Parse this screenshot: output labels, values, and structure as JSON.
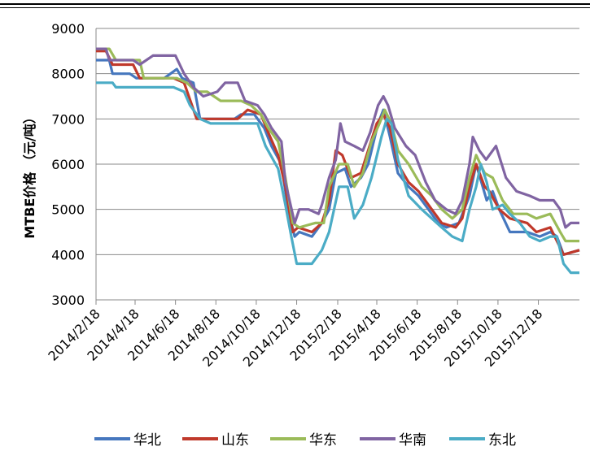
{
  "chart_data": {
    "type": "line",
    "title": "",
    "xlabel": "",
    "ylabel": "MTBE价格 （元/吨）",
    "ylim": [
      3000,
      9000
    ],
    "yticks": [
      3000,
      4000,
      5000,
      6000,
      7000,
      8000,
      9000
    ],
    "xlim": [
      "2014-02-18",
      "2016-02-18"
    ],
    "xticks": [
      "2014-02-18",
      "2014-04-18",
      "2014-06-18",
      "2014-08-18",
      "2014-10-18",
      "2014-12-18",
      "2015-02-18",
      "2015-04-18",
      "2015-06-18",
      "2015-08-18",
      "2015-10-18",
      "2015-12-18"
    ],
    "xtick_labels": [
      "2014/2/18",
      "2014/4/18",
      "2014/6/18",
      "2014/8/18",
      "2014/10/18",
      "2014/12/18",
      "2015/2/18",
      "2015/4/18",
      "2015/6/18",
      "2015/8/18",
      "2015/10/18",
      "2015/12/18"
    ],
    "grid": "horizontal",
    "legend": "bottom",
    "series": [
      {
        "name": "华北",
        "color": "#4677BE",
        "points": [
          [
            "2014-02-18",
            8300
          ],
          [
            "2014-03-10",
            8300
          ],
          [
            "2014-03-15",
            8000
          ],
          [
            "2014-04-10",
            8000
          ],
          [
            "2014-04-20",
            7900
          ],
          [
            "2014-06-01",
            7900
          ],
          [
            "2014-06-20",
            8100
          ],
          [
            "2014-06-28",
            7900
          ],
          [
            "2014-07-15",
            7800
          ],
          [
            "2014-07-25",
            7000
          ],
          [
            "2014-09-15",
            7000
          ],
          [
            "2014-09-25",
            7100
          ],
          [
            "2014-10-15",
            7100
          ],
          [
            "2014-10-30",
            6800
          ],
          [
            "2014-11-10",
            6400
          ],
          [
            "2014-11-25",
            6000
          ],
          [
            "2014-12-05",
            5000
          ],
          [
            "2014-12-15",
            4400
          ],
          [
            "2014-12-22",
            4500
          ],
          [
            "2015-01-10",
            4400
          ],
          [
            "2015-01-25",
            4700
          ],
          [
            "2015-02-05",
            5000
          ],
          [
            "2015-02-15",
            5800
          ],
          [
            "2015-03-01",
            5900
          ],
          [
            "2015-03-10",
            5500
          ],
          [
            "2015-03-25",
            5700
          ],
          [
            "2015-04-05",
            6000
          ],
          [
            "2015-04-20",
            6900
          ],
          [
            "2015-04-28",
            7200
          ],
          [
            "2015-05-08",
            6600
          ],
          [
            "2015-05-20",
            5800
          ],
          [
            "2015-06-05",
            5500
          ],
          [
            "2015-06-20",
            5300
          ],
          [
            "2015-07-05",
            5000
          ],
          [
            "2015-07-20",
            4700
          ],
          [
            "2015-08-01",
            4600
          ],
          [
            "2015-08-20",
            4700
          ],
          [
            "2015-09-05",
            5300
          ],
          [
            "2015-09-15",
            6000
          ],
          [
            "2015-09-25",
            5500
          ],
          [
            "2015-10-01",
            5200
          ],
          [
            "2015-10-10",
            5400
          ],
          [
            "2015-10-20",
            5000
          ],
          [
            "2015-11-05",
            4500
          ],
          [
            "2015-12-01",
            4500
          ],
          [
            "2015-12-20",
            4400
          ],
          [
            "2016-01-05",
            4500
          ],
          [
            "2016-01-15",
            4400
          ],
          [
            "2016-01-25",
            4000
          ],
          [
            "2016-02-18",
            4100
          ]
        ]
      },
      {
        "name": "山东",
        "color": "#C0392B",
        "points": [
          [
            "2014-02-18",
            8500
          ],
          [
            "2014-03-05",
            8500
          ],
          [
            "2014-03-15",
            8200
          ],
          [
            "2014-04-15",
            8200
          ],
          [
            "2014-04-25",
            7900
          ],
          [
            "2014-06-15",
            7900
          ],
          [
            "2014-07-01",
            7800
          ],
          [
            "2014-07-20",
            7000
          ],
          [
            "2014-09-20",
            7000
          ],
          [
            "2014-10-05",
            7200
          ],
          [
            "2014-10-25",
            7100
          ],
          [
            "2014-11-05",
            6700
          ],
          [
            "2014-11-20",
            6200
          ],
          [
            "2014-12-01",
            5500
          ],
          [
            "2014-12-12",
            4500
          ],
          [
            "2014-12-20",
            4600
          ],
          [
            "2015-01-10",
            4500
          ],
          [
            "2015-01-25",
            4700
          ],
          [
            "2015-02-05",
            5200
          ],
          [
            "2015-02-15",
            6300
          ],
          [
            "2015-02-25",
            6200
          ],
          [
            "2015-03-10",
            5700
          ],
          [
            "2015-03-25",
            5800
          ],
          [
            "2015-04-05",
            6300
          ],
          [
            "2015-04-18",
            6900
          ],
          [
            "2015-04-28",
            7100
          ],
          [
            "2015-05-08",
            6800
          ],
          [
            "2015-05-20",
            6000
          ],
          [
            "2015-06-05",
            5600
          ],
          [
            "2015-06-20",
            5400
          ],
          [
            "2015-07-05",
            5100
          ],
          [
            "2015-07-25",
            4700
          ],
          [
            "2015-08-15",
            4600
          ],
          [
            "2015-08-25",
            4800
          ],
          [
            "2015-09-05",
            5500
          ],
          [
            "2015-09-15",
            6000
          ],
          [
            "2015-09-28",
            5500
          ],
          [
            "2015-10-05",
            5400
          ],
          [
            "2015-10-20",
            5000
          ],
          [
            "2015-11-05",
            4800
          ],
          [
            "2015-12-01",
            4700
          ],
          [
            "2015-12-15",
            4500
          ],
          [
            "2016-01-05",
            4600
          ],
          [
            "2016-01-25",
            4000
          ],
          [
            "2016-02-18",
            4100
          ]
        ]
      },
      {
        "name": "华东",
        "color": "#9BBB59",
        "points": [
          [
            "2014-02-18",
            8550
          ],
          [
            "2014-03-10",
            8550
          ],
          [
            "2014-03-20",
            8300
          ],
          [
            "2014-04-25",
            8300
          ],
          [
            "2014-05-01",
            7900
          ],
          [
            "2014-06-20",
            7900
          ],
          [
            "2014-07-05",
            7800
          ],
          [
            "2014-07-20",
            7600
          ],
          [
            "2014-08-05",
            7600
          ],
          [
            "2014-08-15",
            7500
          ],
          [
            "2014-08-25",
            7400
          ],
          [
            "2014-09-25",
            7400
          ],
          [
            "2014-10-10",
            7300
          ],
          [
            "2014-10-25",
            7100
          ],
          [
            "2014-11-05",
            6800
          ],
          [
            "2014-11-20",
            6500
          ],
          [
            "2014-12-01",
            5700
          ],
          [
            "2014-12-12",
            4700
          ],
          [
            "2014-12-22",
            4600
          ],
          [
            "2015-01-15",
            4700
          ],
          [
            "2015-01-28",
            4700
          ],
          [
            "2015-02-05",
            5500
          ],
          [
            "2015-02-20",
            6000
          ],
          [
            "2015-03-05",
            6000
          ],
          [
            "2015-03-15",
            5500
          ],
          [
            "2015-03-28",
            5800
          ],
          [
            "2015-04-10",
            6500
          ],
          [
            "2015-04-22",
            6900
          ],
          [
            "2015-04-30",
            7200
          ],
          [
            "2015-05-10",
            6900
          ],
          [
            "2015-05-20",
            6300
          ],
          [
            "2015-06-05",
            6000
          ],
          [
            "2015-06-25",
            5500
          ],
          [
            "2015-07-10",
            5300
          ],
          [
            "2015-07-25",
            5000
          ],
          [
            "2015-08-10",
            4800
          ],
          [
            "2015-08-25",
            5000
          ],
          [
            "2015-09-05",
            5700
          ],
          [
            "2015-09-15",
            6200
          ],
          [
            "2015-09-28",
            5800
          ],
          [
            "2015-10-10",
            5700
          ],
          [
            "2015-10-25",
            5200
          ],
          [
            "2015-11-10",
            4900
          ],
          [
            "2015-12-01",
            4900
          ],
          [
            "2015-12-15",
            4800
          ],
          [
            "2016-01-05",
            4900
          ],
          [
            "2016-01-20",
            4500
          ],
          [
            "2016-01-28",
            4300
          ],
          [
            "2016-02-18",
            4300
          ]
        ]
      },
      {
        "name": "华南",
        "color": "#8064A2",
        "points": [
          [
            "2014-02-18",
            8550
          ],
          [
            "2014-03-05",
            8550
          ],
          [
            "2014-03-10",
            8300
          ],
          [
            "2014-04-01",
            8300
          ],
          [
            "2014-04-15",
            8300
          ],
          [
            "2014-04-25",
            8200
          ],
          [
            "2014-05-15",
            8400
          ],
          [
            "2014-06-18",
            8400
          ],
          [
            "2014-07-01",
            8000
          ],
          [
            "2014-07-15",
            7700
          ],
          [
            "2014-07-30",
            7500
          ],
          [
            "2014-08-20",
            7600
          ],
          [
            "2014-09-01",
            7800
          ],
          [
            "2014-09-20",
            7800
          ],
          [
            "2014-10-01",
            7400
          ],
          [
            "2014-10-20",
            7300
          ],
          [
            "2014-10-30",
            7100
          ],
          [
            "2014-11-10",
            6800
          ],
          [
            "2014-11-25",
            6500
          ],
          [
            "2014-12-01",
            5600
          ],
          [
            "2014-12-15",
            4700
          ],
          [
            "2014-12-22",
            5000
          ],
          [
            "2015-01-05",
            5000
          ],
          [
            "2015-01-20",
            4900
          ],
          [
            "2015-01-25",
            5100
          ],
          [
            "2015-02-05",
            5700
          ],
          [
            "2015-02-15",
            6100
          ],
          [
            "2015-02-22",
            6900
          ],
          [
            "2015-03-01",
            6500
          ],
          [
            "2015-03-15",
            6400
          ],
          [
            "2015-03-28",
            6300
          ],
          [
            "2015-04-08",
            6700
          ],
          [
            "2015-04-20",
            7300
          ],
          [
            "2015-04-28",
            7500
          ],
          [
            "2015-05-05",
            7300
          ],
          [
            "2015-05-15",
            6800
          ],
          [
            "2015-06-01",
            6400
          ],
          [
            "2015-06-15",
            6200
          ],
          [
            "2015-07-01",
            5600
          ],
          [
            "2015-07-15",
            5200
          ],
          [
            "2015-08-01",
            5000
          ],
          [
            "2015-08-15",
            4900
          ],
          [
            "2015-08-25",
            5200
          ],
          [
            "2015-09-05",
            6000
          ],
          [
            "2015-09-10",
            6600
          ],
          [
            "2015-09-20",
            6300
          ],
          [
            "2015-09-30",
            6100
          ],
          [
            "2015-10-15",
            6400
          ],
          [
            "2015-10-30",
            5700
          ],
          [
            "2015-11-15",
            5400
          ],
          [
            "2015-12-05",
            5300
          ],
          [
            "2015-12-20",
            5200
          ],
          [
            "2016-01-10",
            5200
          ],
          [
            "2016-01-20",
            5000
          ],
          [
            "2016-01-28",
            4600
          ],
          [
            "2016-02-05",
            4700
          ],
          [
            "2016-02-18",
            4700
          ]
        ]
      },
      {
        "name": "东北",
        "color": "#4BACC6",
        "points": [
          [
            "2014-02-18",
            7800
          ],
          [
            "2014-03-15",
            7800
          ],
          [
            "2014-03-20",
            7700
          ],
          [
            "2014-06-15",
            7700
          ],
          [
            "2014-07-01",
            7600
          ],
          [
            "2014-07-10",
            7300
          ],
          [
            "2014-07-25",
            7000
          ],
          [
            "2014-08-10",
            6900
          ],
          [
            "2014-10-20",
            6900
          ],
          [
            "2014-11-01",
            6400
          ],
          [
            "2014-11-20",
            5900
          ],
          [
            "2014-12-01",
            5100
          ],
          [
            "2014-12-10",
            4400
          ],
          [
            "2014-12-18",
            3800
          ],
          [
            "2015-01-10",
            3800
          ],
          [
            "2015-01-25",
            4100
          ],
          [
            "2015-02-05",
            4500
          ],
          [
            "2015-02-20",
            5500
          ],
          [
            "2015-03-05",
            5500
          ],
          [
            "2015-03-15",
            4800
          ],
          [
            "2015-03-28",
            5100
          ],
          [
            "2015-04-10",
            5700
          ],
          [
            "2015-04-25",
            6600
          ],
          [
            "2015-05-03",
            7000
          ],
          [
            "2015-05-10",
            6900
          ],
          [
            "2015-05-20",
            6100
          ],
          [
            "2015-06-05",
            5300
          ],
          [
            "2015-06-25",
            5000
          ],
          [
            "2015-07-10",
            4800
          ],
          [
            "2015-07-25",
            4600
          ],
          [
            "2015-08-10",
            4400
          ],
          [
            "2015-08-25",
            4300
          ],
          [
            "2015-09-05",
            5000
          ],
          [
            "2015-09-15",
            5500
          ],
          [
            "2015-09-22",
            6000
          ],
          [
            "2015-10-01",
            5600
          ],
          [
            "2015-10-10",
            5000
          ],
          [
            "2015-10-25",
            5100
          ],
          [
            "2015-11-05",
            4900
          ],
          [
            "2015-11-20",
            4700
          ],
          [
            "2015-12-05",
            4400
          ],
          [
            "2015-12-20",
            4300
          ],
          [
            "2016-01-05",
            4400
          ],
          [
            "2016-01-15",
            4400
          ],
          [
            "2016-01-25",
            3800
          ],
          [
            "2016-02-05",
            3600
          ],
          [
            "2016-02-18",
            3600
          ]
        ]
      }
    ]
  }
}
